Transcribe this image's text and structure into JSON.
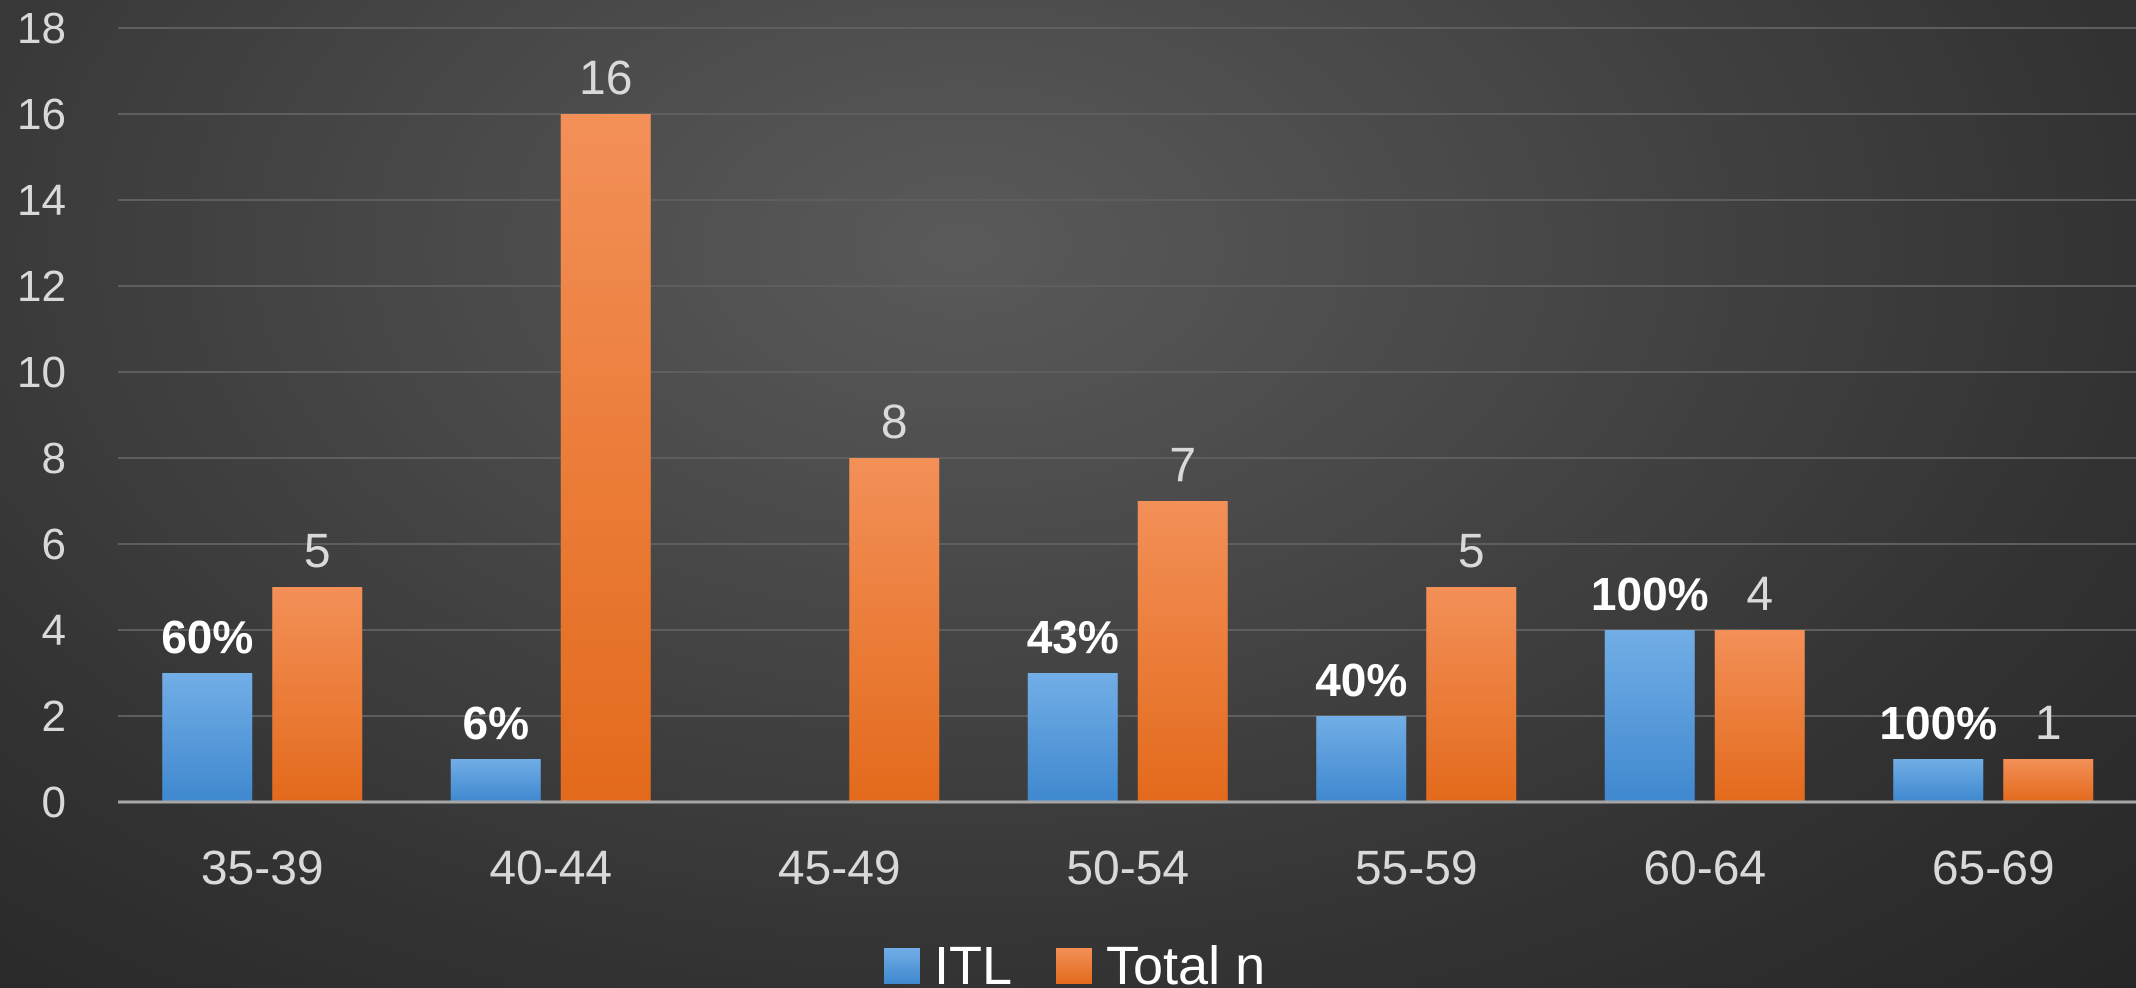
{
  "chart_data": {
    "type": "bar",
    "categories": [
      "35-39",
      "40-44",
      "45-49",
      "50-54",
      "55-59",
      "60-64",
      "65-69"
    ],
    "series": [
      {
        "name": "ITL",
        "values": [
          3,
          1,
          0,
          3,
          2,
          4,
          1
        ],
        "data_labels": [
          "60%",
          "6%",
          "",
          "43%",
          "40%",
          "100%",
          "100%"
        ],
        "color_top": "#72aee6",
        "color_bottom": "#3f88cf"
      },
      {
        "name": "Total n",
        "values": [
          5,
          16,
          8,
          7,
          5,
          4,
          1
        ],
        "data_labels": [
          "5",
          "16",
          "8",
          "7",
          "5",
          "4",
          "1"
        ],
        "color_top": "#f39058",
        "color_bottom": "#e36a1c"
      }
    ],
    "ylim": [
      0,
      18
    ],
    "yticks": [
      "0",
      "2",
      "4",
      "6",
      "8",
      "10",
      "12",
      "14",
      "16",
      "18"
    ],
    "grid": true,
    "legend_position": "bottom",
    "title": "",
    "xlabel": "",
    "ylabel": ""
  },
  "colors": {
    "gridline": "#5e5e5e",
    "axis": "#a6a6a6",
    "label": "#d9d9d9"
  }
}
